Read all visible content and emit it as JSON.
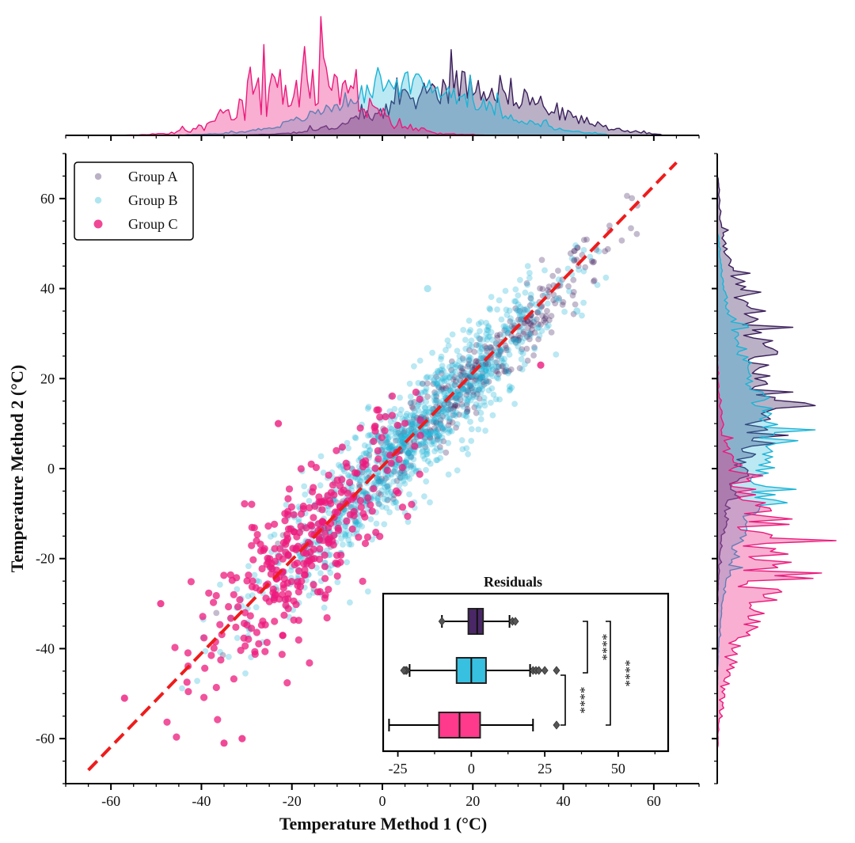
{
  "colors": {
    "group_a": "#3b1f5c",
    "group_b": "#1ab4d6",
    "group_c": "#ec1a7c",
    "identity_line": "#ee1c1c",
    "box_a_fill": "#4a2766",
    "box_b_fill": "#38c0e0",
    "box_c_fill": "#ff3a8c"
  },
  "chart_data": [
    {
      "id": "main_scatter",
      "type": "scatter",
      "xlabel": "Temperature Method 1 (°C)",
      "ylabel": "Temperature Method 2 (°C)",
      "xlim": [
        -70,
        70
      ],
      "ylim": [
        -70,
        70
      ],
      "xticks": [
        -60,
        -40,
        -20,
        0,
        20,
        40,
        60
      ],
      "yticks": [
        -60,
        -40,
        -20,
        0,
        20,
        40,
        60
      ],
      "xtick_labels": [
        "-60",
        "-40",
        "-20",
        "0",
        "20",
        "40",
        "60"
      ],
      "ytick_labels": [
        "-60",
        "-40",
        "-20",
        "0",
        "20",
        "40",
        "60"
      ],
      "legend_position": "top-left",
      "identity_line": {
        "x": [
          -65,
          65
        ],
        "y": [
          -67,
          68
        ],
        "style": "dashed"
      },
      "series": [
        {
          "name": "Group A",
          "color_key": "group_a",
          "n": 420,
          "x_mean": 19,
          "x_sd": 16,
          "x_range": [
            -40,
            62
          ],
          "noise_sd": 4,
          "slope": 1.0,
          "intercept": 0
        },
        {
          "name": "Group B",
          "color_key": "group_b",
          "n": 1100,
          "x_mean": 6,
          "x_sd": 16,
          "x_range": [
            -45,
            50
          ],
          "noise_sd": 6,
          "slope": 1.0,
          "intercept": 0
        },
        {
          "name": "Group C",
          "color_key": "group_c",
          "n": 330,
          "x_mean": -17,
          "x_sd": 12,
          "x_range": [
            -58,
            38
          ],
          "noise_sd": 8,
          "slope": 1.0,
          "intercept": 0
        }
      ],
      "outliers": [
        {
          "group": "Group C",
          "x": -57,
          "y": -51
        },
        {
          "group": "Group C",
          "x": -49,
          "y": -30
        },
        {
          "group": "Group C",
          "x": -35,
          "y": -61
        },
        {
          "group": "Group C",
          "x": -31,
          "y": -60
        },
        {
          "group": "Group C",
          "x": 35,
          "y": 23
        },
        {
          "group": "Group C",
          "x": -23,
          "y": 10
        },
        {
          "group": "Group B",
          "x": 10,
          "y": 40
        },
        {
          "group": "Group B",
          "x": 43,
          "y": 35
        }
      ]
    },
    {
      "id": "top_marginal",
      "type": "area",
      "axis": "x",
      "range": [
        -70,
        70
      ],
      "series": [
        {
          "name": "Group A",
          "mean": 19,
          "sd": 16,
          "min": -40,
          "max": 62,
          "spikiness": 0.35
        },
        {
          "name": "Group B",
          "mean": 6,
          "sd": 16,
          "min": -45,
          "max": 50,
          "spikiness": 0.25
        },
        {
          "name": "Group C",
          "mean": -17,
          "sd": 12,
          "min": -58,
          "max": 38,
          "spikiness": 0.55
        }
      ]
    },
    {
      "id": "right_marginal",
      "type": "area",
      "axis": "y",
      "range": [
        -70,
        70
      ],
      "series": [
        {
          "name": "Group A",
          "mean": 19,
          "sd": 16,
          "min": -42,
          "max": 65,
          "spikiness": 0.35
        },
        {
          "name": "Group B",
          "mean": 6,
          "sd": 17,
          "min": -52,
          "max": 52,
          "spikiness": 0.25
        },
        {
          "name": "Group C",
          "mean": -20,
          "sd": 14,
          "min": -62,
          "max": 30,
          "spikiness": 0.55
        }
      ]
    },
    {
      "id": "residuals_inset",
      "type": "box",
      "title": "Residuals",
      "xlim": [
        -30,
        67
      ],
      "xticks": [
        -25,
        0,
        25,
        50
      ],
      "xtick_labels": [
        "-25",
        "0",
        "25",
        "50"
      ],
      "boxes": [
        {
          "group": "Group A",
          "fill_key": "box_a_fill",
          "whisker_low": -10,
          "q1": -1,
          "median": 2,
          "q3": 4,
          "whisker_high": 13,
          "fliers": [
            14,
            15,
            -10
          ]
        },
        {
          "group": "Group B",
          "fill_key": "box_b_fill",
          "whisker_low": -21,
          "q1": -5,
          "median": 0,
          "q3": 5,
          "whisker_high": 20,
          "fliers": [
            -22,
            -22.5,
            -23,
            21,
            22,
            23,
            25,
            29
          ]
        },
        {
          "group": "Group C",
          "fill_key": "box_c_fill",
          "whisker_low": -28,
          "q1": -11,
          "median": -4,
          "q3": 3,
          "whisker_high": 21,
          "fliers": [
            29
          ]
        }
      ],
      "brackets": [
        {
          "between": [
            "Group A",
            "Group B"
          ],
          "label": "****"
        },
        {
          "between": [
            "Group B",
            "Group C"
          ],
          "label": "****"
        },
        {
          "between": [
            "Group A",
            "Group C"
          ],
          "label": "****"
        }
      ]
    }
  ]
}
